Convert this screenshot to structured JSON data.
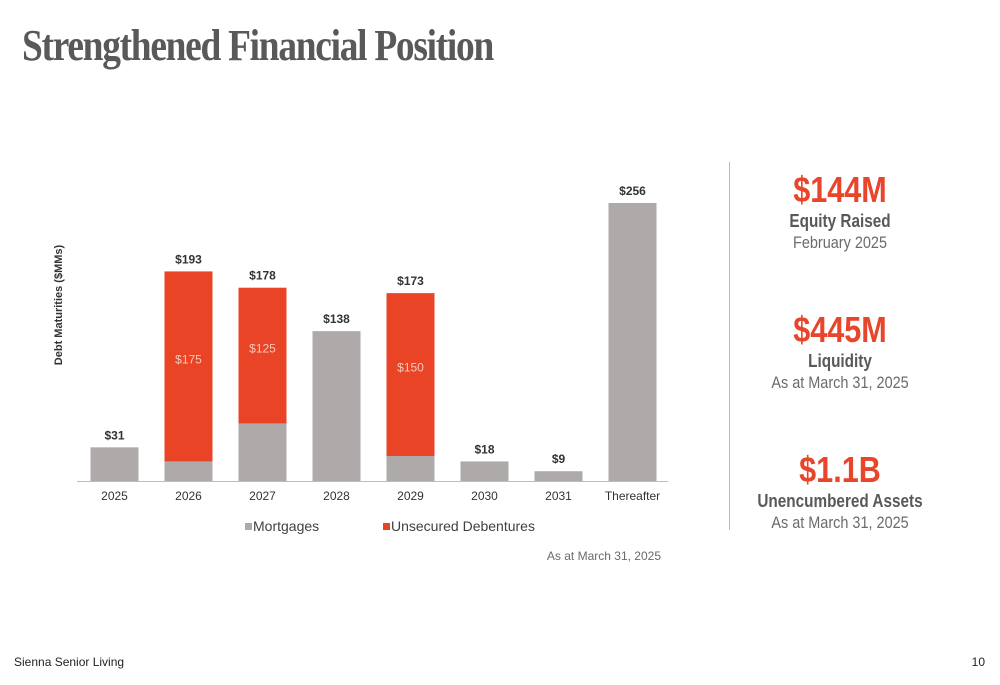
{
  "title": "Strengthened Financial Position",
  "colors": {
    "accent": "#e8452a",
    "mortgages": "#aeaaa9",
    "unsecured": "#ea4427"
  },
  "chart_data": {
    "type": "bar",
    "stacked": true,
    "ylabel": "Debt Maturities ($MMs)",
    "xlabel": "",
    "categories": [
      "2025",
      "2026",
      "2027",
      "2028",
      "2029",
      "2030",
      "2031",
      "Thereafter"
    ],
    "series": [
      {
        "name": "Mortgages",
        "color": "#aeaaa9",
        "values": [
          31,
          18,
          53,
          138,
          23,
          18,
          9,
          256
        ]
      },
      {
        "name": "Unsecured Debentures",
        "color": "#ea4427",
        "values": [
          0,
          175,
          125,
          0,
          150,
          0,
          0,
          0
        ]
      }
    ],
    "segment_labels": [
      "",
      "$175",
      "$125",
      "",
      "$150",
      "",
      "",
      ""
    ],
    "total_labels": [
      "$31",
      "$193",
      "$178",
      "$138",
      "$173",
      "$18",
      "$9",
      "$256"
    ],
    "ylim": [
      0,
      256
    ],
    "legend_position": "bottom",
    "grid": false,
    "note": "As at March 31, 2025"
  },
  "stats": [
    {
      "value": "$144M",
      "label": "Equity Raised",
      "sub": "February 2025"
    },
    {
      "value": "$445M",
      "label": "Liquidity",
      "sub": "As at March 31, 2025"
    },
    {
      "value": "$1.1B",
      "label": "Unencumbered Assets",
      "sub": "As at March 31, 2025"
    }
  ],
  "footer": {
    "company": "Sienna Senior Living",
    "page_number": "10"
  }
}
